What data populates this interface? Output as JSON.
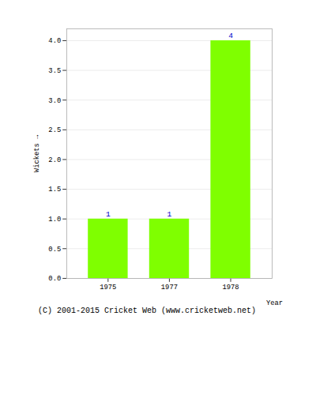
{
  "chart_data": {
    "type": "bar",
    "categories": [
      "1975",
      "1977",
      "1978"
    ],
    "values": [
      1,
      1,
      4
    ],
    "color": "#7fff00",
    "xlabel": "Year",
    "ylabel": "Wickets",
    "ylim": [
      0,
      4.2
    ],
    "yticks": [
      {
        "value": 0,
        "label": "0.0"
      },
      0.5,
      {
        "value": 1,
        "label": "1.0"
      },
      1.5,
      {
        "value": 2,
        "label": "2.0"
      },
      2.5,
      {
        "value": 3,
        "label": "3.0"
      },
      3.5,
      {
        "value": 4,
        "label": "4.0"
      }
    ],
    "grid": true,
    "data_labels": true,
    "annotations": [
      "(C) 2001-2015 Cricket Web (www.cricketweb.net)"
    ]
  }
}
